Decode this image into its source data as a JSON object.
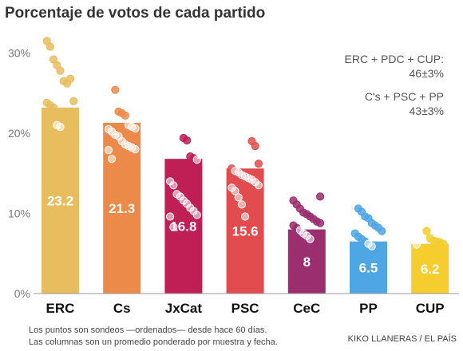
{
  "chart_data": {
    "type": "bar",
    "title": "Porcentaje de votos de cada partido",
    "categories": [
      "ERC",
      "Cs",
      "JxCat",
      "PSC",
      "CeC",
      "PP",
      "CUP"
    ],
    "values": [
      23.2,
      21.3,
      16.8,
      15.6,
      8,
      6.5,
      6.2
    ],
    "value_labels": [
      "23.2",
      "21.3",
      "16.8",
      "15.6",
      "8",
      "6.5",
      "6.2"
    ],
    "colors": [
      "#e8bd5e",
      "#ec8a49",
      "#c01f55",
      "#e34c4e",
      "#9a2e6f",
      "#4fa6e4",
      "#f5cd2e"
    ],
    "polls": [
      [
        31.5,
        30.8,
        29.2,
        28.5,
        27.8,
        26.5,
        26.2,
        26.8,
        24.0,
        23.8,
        23.5,
        23.2,
        21.0,
        20.8
      ],
      [
        25.4,
        22.7,
        22.5,
        22.2,
        21.0,
        20.8,
        20.6,
        20.5,
        20.2,
        19.8,
        19.6,
        19.0,
        18.6,
        18.4,
        18.2,
        18.0,
        17.9,
        16.8
      ],
      [
        19.4,
        19.1,
        17.1,
        16.9,
        16.7,
        14.0,
        13.5,
        12.4,
        12.1,
        11.6,
        11.2,
        10.7,
        10.3,
        9.8,
        9.6,
        8.3
      ],
      [
        19.0,
        18.4,
        16.2,
        15.6,
        15.3,
        15.1,
        14.8,
        14.6,
        14.4,
        14.2,
        13.9,
        13.5,
        13.2,
        12.8,
        12.0,
        11.1,
        9.6
      ],
      [
        12.1,
        11.6,
        11.1,
        10.6,
        10.1,
        9.9,
        9.6,
        9.3,
        9.0,
        8.8,
        8.5,
        8.2,
        7.9,
        7.5,
        7.2,
        6.8
      ],
      [
        10.6,
        10.2,
        9.6,
        9.4,
        8.8,
        8.5,
        8.2,
        7.8,
        7.5,
        7.1,
        6.8,
        6.5,
        6.2,
        5.9
      ],
      [
        7.8,
        6.9,
        6.6,
        6.5,
        6.4,
        6.2,
        6.1
      ]
    ],
    "y_ticks": [
      0,
      10,
      20,
      30
    ],
    "y_tick_labels": [
      "0%",
      "10%",
      "20%",
      "30%"
    ],
    "ylim": [
      0,
      33
    ],
    "grid": false,
    "annotations": [
      {
        "line1": "ERC + PDC + CUP:",
        "line2": "46±3%"
      },
      {
        "line1": "C's + PSC + PP",
        "line2": "43±3%"
      }
    ]
  },
  "footer": {
    "note_line1": "Los puntos son sondeos —ordenados— desde hace 60 días.",
    "note_line2": "Las columnas son un promedio ponderado por muestra y fecha.",
    "credit": "KIKO LLANERAS / EL PAÍS"
  }
}
